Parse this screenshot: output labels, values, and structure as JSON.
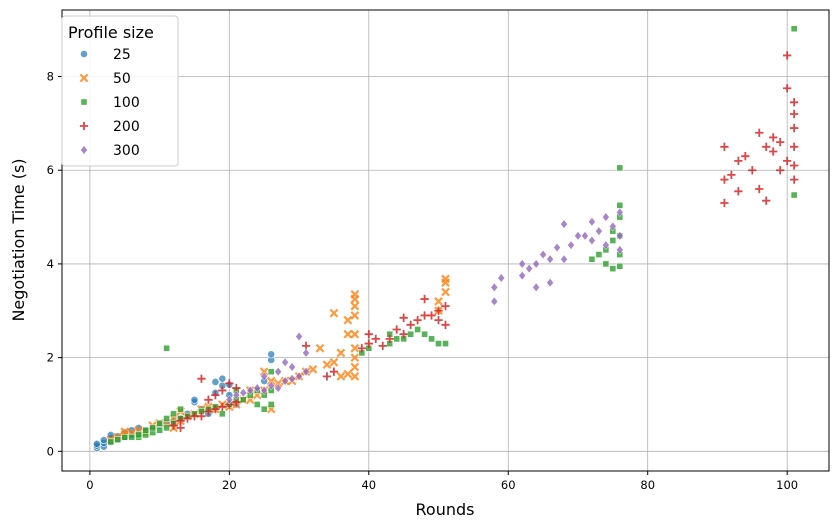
{
  "chart_data": {
    "type": "scatter",
    "xlabel": "Rounds",
    "ylabel": "Negotiation Time (s)",
    "xlim": [
      -4,
      106
    ],
    "ylim": [
      -0.42,
      9.42
    ],
    "xticks": [
      0,
      20,
      40,
      60,
      80,
      100
    ],
    "yticks": [
      0,
      2,
      4,
      6,
      8
    ],
    "grid": true,
    "legend": {
      "title": "Profile size",
      "placement": "top-left"
    },
    "series": [
      {
        "name": "25",
        "color": "#1f77b4",
        "marker": "circle",
        "points": [
          [
            1,
            0.07
          ],
          [
            1,
            0.12
          ],
          [
            1,
            0.16
          ],
          [
            2,
            0.1
          ],
          [
            2,
            0.18
          ],
          [
            2,
            0.24
          ],
          [
            3,
            0.2
          ],
          [
            3,
            0.28
          ],
          [
            3,
            0.35
          ],
          [
            4,
            0.25
          ],
          [
            4,
            0.32
          ],
          [
            5,
            0.3
          ],
          [
            5,
            0.4
          ],
          [
            6,
            0.35
          ],
          [
            6,
            0.45
          ],
          [
            7,
            0.4
          ],
          [
            7,
            0.5
          ],
          [
            8,
            0.45
          ],
          [
            9,
            0.5
          ],
          [
            10,
            0.55
          ],
          [
            11,
            0.6
          ],
          [
            12,
            0.65
          ],
          [
            13,
            0.7
          ],
          [
            14,
            0.8
          ],
          [
            15,
            1.05
          ],
          [
            15,
            1.1
          ],
          [
            16,
            0.9
          ],
          [
            17,
            0.8
          ],
          [
            18,
            1.25
          ],
          [
            18,
            1.48
          ],
          [
            19,
            1.4
          ],
          [
            19,
            1.55
          ],
          [
            20,
            1.2
          ],
          [
            20,
            1.42
          ],
          [
            21,
            1.0
          ],
          [
            25,
            1.5
          ],
          [
            26,
            1.95
          ],
          [
            26,
            2.07
          ]
        ]
      },
      {
        "name": "50",
        "color": "#ff7f0e",
        "marker": "x",
        "points": [
          [
            3,
            0.25
          ],
          [
            4,
            0.3
          ],
          [
            5,
            0.35
          ],
          [
            5,
            0.42
          ],
          [
            6,
            0.4
          ],
          [
            7,
            0.45
          ],
          [
            8,
            0.4
          ],
          [
            9,
            0.55
          ],
          [
            10,
            0.6
          ],
          [
            11,
            0.6
          ],
          [
            12,
            0.5
          ],
          [
            12,
            0.7
          ],
          [
            13,
            0.65
          ],
          [
            13,
            0.85
          ],
          [
            14,
            0.75
          ],
          [
            15,
            0.8
          ],
          [
            16,
            0.9
          ],
          [
            17,
            0.95
          ],
          [
            18,
            0.9
          ],
          [
            19,
            1.0
          ],
          [
            20,
            0.95
          ],
          [
            21,
            1.0
          ],
          [
            22,
            1.1
          ],
          [
            23,
            1.1
          ],
          [
            23,
            1.3
          ],
          [
            24,
            1.2
          ],
          [
            25,
            1.3
          ],
          [
            25,
            1.7
          ],
          [
            26,
            0.9
          ],
          [
            26,
            1.5
          ],
          [
            27,
            1.45
          ],
          [
            28,
            1.5
          ],
          [
            29,
            1.5
          ],
          [
            30,
            1.6
          ],
          [
            31,
            1.7
          ],
          [
            32,
            1.75
          ],
          [
            33,
            2.2
          ],
          [
            34,
            1.85
          ],
          [
            35,
            1.9
          ],
          [
            35,
            2.95
          ],
          [
            36,
            1.6
          ],
          [
            36,
            2.1
          ],
          [
            37,
            1.65
          ],
          [
            37,
            2.5
          ],
          [
            37,
            2.8
          ],
          [
            38,
            1.6
          ],
          [
            38,
            1.8
          ],
          [
            38,
            2.0
          ],
          [
            38,
            2.2
          ],
          [
            38,
            2.5
          ],
          [
            38,
            2.9
          ],
          [
            38,
            3.1
          ],
          [
            38,
            3.25
          ],
          [
            38,
            3.35
          ],
          [
            50,
            3.0
          ],
          [
            50,
            3.2
          ],
          [
            51,
            3.4
          ],
          [
            51,
            3.6
          ],
          [
            51,
            3.68
          ]
        ]
      },
      {
        "name": "100",
        "color": "#2ca02c",
        "marker": "square",
        "points": [
          [
            3,
            0.2
          ],
          [
            4,
            0.25
          ],
          [
            5,
            0.3
          ],
          [
            6,
            0.3
          ],
          [
            7,
            0.3
          ],
          [
            7,
            0.35
          ],
          [
            8,
            0.35
          ],
          [
            8,
            0.45
          ],
          [
            9,
            0.4
          ],
          [
            9,
            0.5
          ],
          [
            10,
            0.45
          ],
          [
            10,
            0.6
          ],
          [
            11,
            0.5
          ],
          [
            11,
            0.7
          ],
          [
            11,
            2.2
          ],
          [
            12,
            0.6
          ],
          [
            12,
            0.8
          ],
          [
            13,
            0.7
          ],
          [
            13,
            0.9
          ],
          [
            14,
            0.75
          ],
          [
            15,
            0.8
          ],
          [
            16,
            0.85
          ],
          [
            17,
            0.9
          ],
          [
            18,
            0.95
          ],
          [
            19,
            0.8
          ],
          [
            20,
            1.0
          ],
          [
            21,
            1.1
          ],
          [
            21,
            1.3
          ],
          [
            22,
            1.1
          ],
          [
            23,
            1.2
          ],
          [
            24,
            1.0
          ],
          [
            24,
            1.3
          ],
          [
            25,
            0.9
          ],
          [
            25,
            1.2
          ],
          [
            26,
            1.0
          ],
          [
            26,
            1.3
          ],
          [
            26,
            1.7
          ],
          [
            39,
            2.1
          ],
          [
            40,
            2.2
          ],
          [
            43,
            2.3
          ],
          [
            43,
            2.5
          ],
          [
            44,
            2.4
          ],
          [
            45,
            2.4
          ],
          [
            46,
            2.5
          ],
          [
            47,
            2.6
          ],
          [
            48,
            2.5
          ],
          [
            49,
            2.4
          ],
          [
            50,
            2.3
          ],
          [
            51,
            2.3
          ],
          [
            72,
            4.1
          ],
          [
            73,
            4.2
          ],
          [
            74,
            4.0
          ],
          [
            74,
            4.3
          ],
          [
            75,
            3.9
          ],
          [
            75,
            4.5
          ],
          [
            75,
            4.7
          ],
          [
            76,
            3.95
          ],
          [
            76,
            4.2
          ],
          [
            76,
            4.6
          ],
          [
            76,
            5.0
          ],
          [
            76,
            5.25
          ],
          [
            76,
            6.05
          ],
          [
            101,
            5.47
          ],
          [
            101,
            9.02
          ]
        ]
      },
      {
        "name": "200",
        "color": "#d62728",
        "marker": "plus",
        "points": [
          [
            12,
            0.55
          ],
          [
            13,
            0.5
          ],
          [
            13,
            0.65
          ],
          [
            14,
            0.7
          ],
          [
            15,
            0.75
          ],
          [
            16,
            0.75
          ],
          [
            16,
            1.55
          ],
          [
            17,
            0.85
          ],
          [
            17,
            1.1
          ],
          [
            18,
            0.9
          ],
          [
            18,
            1.2
          ],
          [
            19,
            0.95
          ],
          [
            19,
            1.3
          ],
          [
            20,
            1.0
          ],
          [
            20,
            1.45
          ],
          [
            21,
            1.05
          ],
          [
            21,
            1.35
          ],
          [
            31,
            2.25
          ],
          [
            34,
            1.6
          ],
          [
            35,
            1.7
          ],
          [
            39,
            2.2
          ],
          [
            40,
            2.3
          ],
          [
            40,
            2.5
          ],
          [
            41,
            2.4
          ],
          [
            42,
            2.25
          ],
          [
            43,
            2.4
          ],
          [
            44,
            2.6
          ],
          [
            45,
            2.5
          ],
          [
            45,
            2.85
          ],
          [
            46,
            2.7
          ],
          [
            47,
            2.8
          ],
          [
            48,
            3.25
          ],
          [
            48,
            2.9
          ],
          [
            49,
            2.9
          ],
          [
            50,
            2.8
          ],
          [
            50,
            3.0
          ],
          [
            51,
            2.7
          ],
          [
            51,
            3.1
          ],
          [
            91,
            5.3
          ],
          [
            91,
            5.8
          ],
          [
            91,
            6.5
          ],
          [
            92,
            5.9
          ],
          [
            93,
            5.55
          ],
          [
            93,
            6.2
          ],
          [
            94,
            6.3
          ],
          [
            95,
            6.0
          ],
          [
            96,
            5.6
          ],
          [
            96,
            6.8
          ],
          [
            97,
            5.35
          ],
          [
            97,
            6.5
          ],
          [
            98,
            6.4
          ],
          [
            98,
            6.7
          ],
          [
            99,
            6.0
          ],
          [
            99,
            6.6
          ],
          [
            100,
            6.2
          ],
          [
            100,
            7.75
          ],
          [
            100,
            8.45
          ],
          [
            101,
            5.8
          ],
          [
            101,
            6.1
          ],
          [
            101,
            6.5
          ],
          [
            101,
            6.9
          ],
          [
            101,
            7.2
          ],
          [
            101,
            7.45
          ]
        ]
      },
      {
        "name": "300",
        "color": "#9467bd",
        "marker": "diamond",
        "points": [
          [
            20,
            1.1
          ],
          [
            21,
            1.2
          ],
          [
            22,
            1.25
          ],
          [
            23,
            1.3
          ],
          [
            24,
            1.35
          ],
          [
            25,
            1.3
          ],
          [
            25,
            1.6
          ],
          [
            26,
            1.4
          ],
          [
            27,
            1.35
          ],
          [
            27,
            1.7
          ],
          [
            28,
            1.5
          ],
          [
            28,
            1.9
          ],
          [
            29,
            1.55
          ],
          [
            29,
            1.8
          ],
          [
            30,
            1.6
          ],
          [
            30,
            2.45
          ],
          [
            31,
            1.7
          ],
          [
            31,
            2.1
          ],
          [
            58,
            3.2
          ],
          [
            58,
            3.5
          ],
          [
            59,
            3.7
          ],
          [
            62,
            3.75
          ],
          [
            62,
            4.0
          ],
          [
            63,
            3.9
          ],
          [
            64,
            3.5
          ],
          [
            64,
            4.0
          ],
          [
            65,
            4.2
          ],
          [
            66,
            4.1
          ],
          [
            66,
            3.6
          ],
          [
            67,
            4.35
          ],
          [
            68,
            4.1
          ],
          [
            68,
            4.85
          ],
          [
            69,
            4.4
          ],
          [
            70,
            4.6
          ],
          [
            71,
            4.6
          ],
          [
            72,
            4.5
          ],
          [
            72,
            4.9
          ],
          [
            73,
            4.7
          ],
          [
            74,
            4.4
          ],
          [
            74,
            5.0
          ],
          [
            75,
            4.8
          ],
          [
            76,
            4.3
          ],
          [
            76,
            4.6
          ],
          [
            76,
            5.1
          ]
        ]
      }
    ]
  }
}
